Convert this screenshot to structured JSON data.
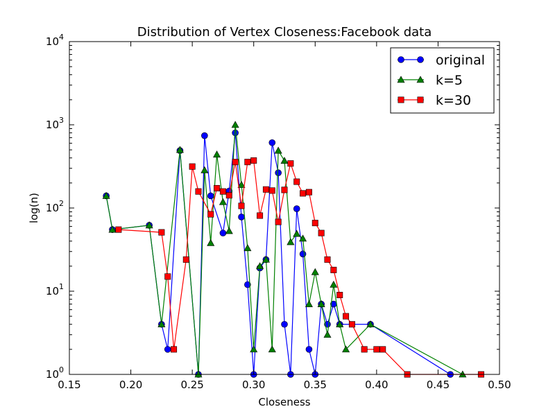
{
  "chart_data": {
    "type": "line",
    "title": "Distribution of Vertex Closeness:Facebook data",
    "xlabel": "Closeness",
    "ylabel": "log(n)",
    "xlim": [
      0.15,
      0.5
    ],
    "ylim": [
      1,
      10000
    ],
    "yscale": "log",
    "x_ticks": [
      "0.15",
      "0.20",
      "0.25",
      "0.30",
      "0.35",
      "0.40",
      "0.45",
      "0.50"
    ],
    "y_ticks": [
      {
        "value": 1,
        "base": "10",
        "exp": "0"
      },
      {
        "value": 10,
        "base": "10",
        "exp": "1"
      },
      {
        "value": 100,
        "base": "10",
        "exp": "2"
      },
      {
        "value": 1000,
        "base": "10",
        "exp": "3"
      },
      {
        "value": 10000,
        "base": "10",
        "exp": "4"
      }
    ],
    "grid": false,
    "legend_position": "top-right",
    "series": [
      {
        "name": "original",
        "color": "#0000ff",
        "marker": "circle",
        "points": [
          [
            0.18,
            140
          ],
          [
            0.185,
            55
          ],
          [
            0.215,
            62
          ],
          [
            0.225,
            4
          ],
          [
            0.23,
            2
          ],
          [
            0.24,
            490
          ],
          [
            0.255,
            1
          ],
          [
            0.26,
            740
          ],
          [
            0.265,
            140
          ],
          [
            0.275,
            50
          ],
          [
            0.28,
            160
          ],
          [
            0.285,
            800
          ],
          [
            0.29,
            78
          ],
          [
            0.295,
            12
          ],
          [
            0.3,
            1
          ],
          [
            0.305,
            19
          ],
          [
            0.31,
            24
          ],
          [
            0.315,
            610
          ],
          [
            0.32,
            265
          ],
          [
            0.325,
            4
          ],
          [
            0.33,
            1
          ],
          [
            0.335,
            98
          ],
          [
            0.34,
            28
          ],
          [
            0.345,
            2
          ],
          [
            0.35,
            1
          ],
          [
            0.355,
            7
          ],
          [
            0.36,
            4
          ],
          [
            0.365,
            7
          ],
          [
            0.37,
            4
          ],
          [
            0.395,
            4
          ],
          [
            0.46,
            1
          ]
        ]
      },
      {
        "name": "k=5",
        "color": "#008000",
        "marker": "triangle",
        "points": [
          [
            0.18,
            140
          ],
          [
            0.185,
            55
          ],
          [
            0.215,
            62
          ],
          [
            0.225,
            4
          ],
          [
            0.24,
            500
          ],
          [
            0.255,
            1
          ],
          [
            0.26,
            285
          ],
          [
            0.265,
            38
          ],
          [
            0.27,
            440
          ],
          [
            0.275,
            118
          ],
          [
            0.28,
            53
          ],
          [
            0.285,
            1000
          ],
          [
            0.29,
            190
          ],
          [
            0.295,
            33
          ],
          [
            0.3,
            2
          ],
          [
            0.305,
            20
          ],
          [
            0.31,
            24
          ],
          [
            0.315,
            2
          ],
          [
            0.32,
            490
          ],
          [
            0.325,
            370
          ],
          [
            0.33,
            39
          ],
          [
            0.335,
            49
          ],
          [
            0.34,
            43
          ],
          [
            0.345,
            7
          ],
          [
            0.35,
            17
          ],
          [
            0.355,
            7
          ],
          [
            0.36,
            3
          ],
          [
            0.365,
            12
          ],
          [
            0.37,
            4
          ],
          [
            0.375,
            2
          ],
          [
            0.395,
            4
          ],
          [
            0.47,
            1
          ]
        ]
      },
      {
        "name": "k=30",
        "color": "#ff0000",
        "marker": "square",
        "points": [
          [
            0.19,
            55
          ],
          [
            0.225,
            51
          ],
          [
            0.23,
            15
          ],
          [
            0.235,
            2
          ],
          [
            0.245,
            24
          ],
          [
            0.25,
            315
          ],
          [
            0.255,
            158
          ],
          [
            0.265,
            84
          ],
          [
            0.27,
            173
          ],
          [
            0.275,
            158
          ],
          [
            0.28,
            142
          ],
          [
            0.285,
            357
          ],
          [
            0.29,
            106
          ],
          [
            0.295,
            357
          ],
          [
            0.3,
            372
          ],
          [
            0.305,
            81
          ],
          [
            0.31,
            167
          ],
          [
            0.315,
            162
          ],
          [
            0.32,
            68
          ],
          [
            0.325,
            165
          ],
          [
            0.33,
            343
          ],
          [
            0.335,
            207
          ],
          [
            0.34,
            150
          ],
          [
            0.345,
            155
          ],
          [
            0.35,
            66
          ],
          [
            0.355,
            50
          ],
          [
            0.36,
            24
          ],
          [
            0.365,
            18
          ],
          [
            0.37,
            9
          ],
          [
            0.375,
            5
          ],
          [
            0.38,
            4
          ],
          [
            0.39,
            2
          ],
          [
            0.4,
            2
          ],
          [
            0.405,
            2
          ],
          [
            0.425,
            1
          ],
          [
            0.485,
            1
          ]
        ]
      }
    ]
  }
}
